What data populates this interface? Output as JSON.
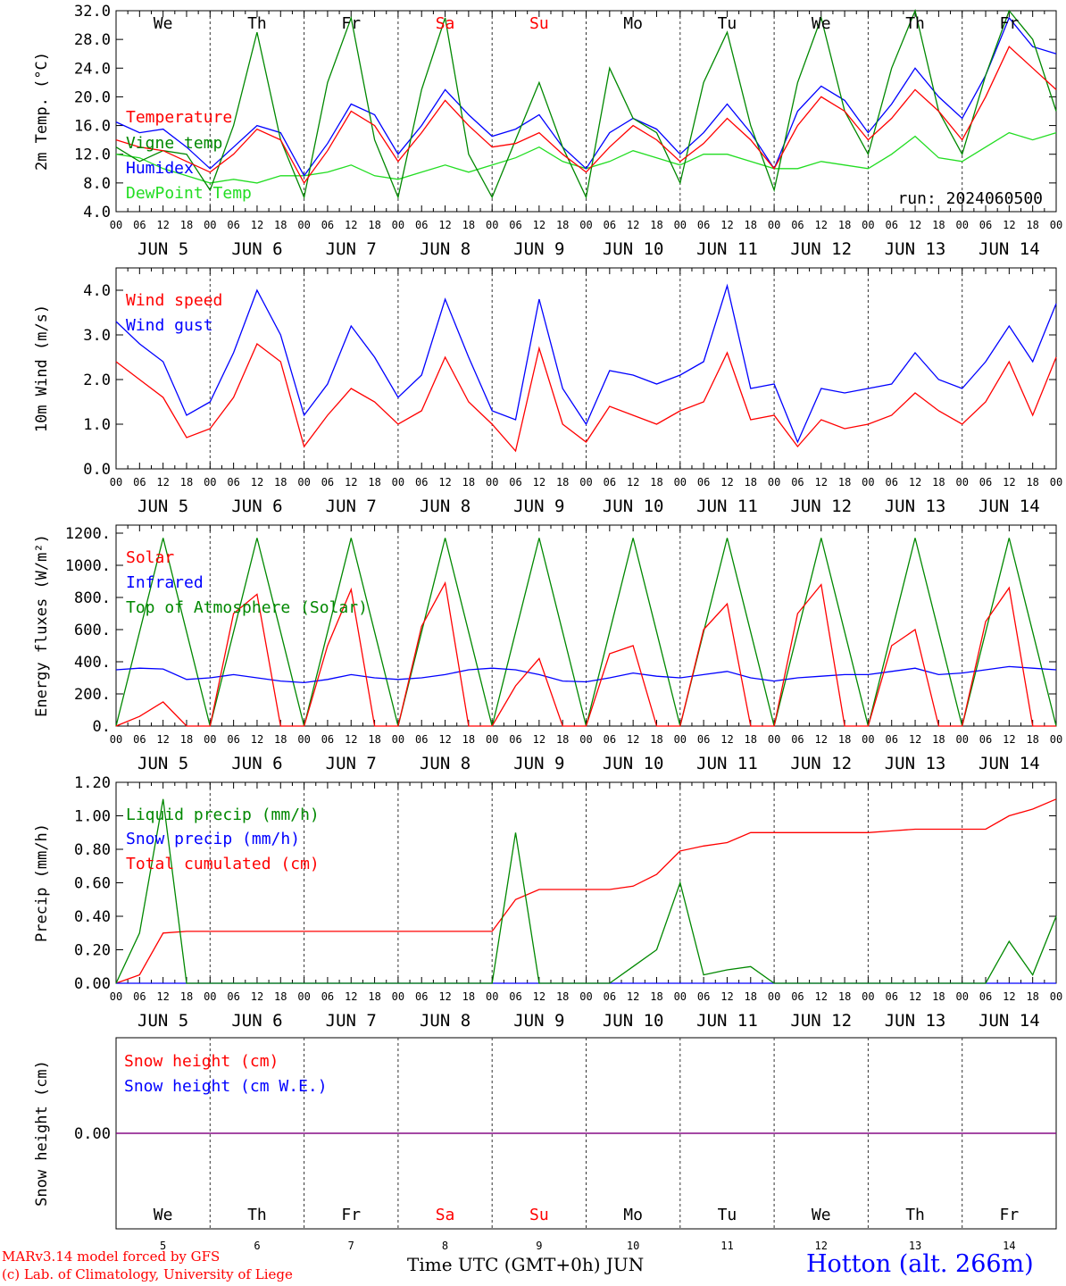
{
  "run_label": "run: 2024060500",
  "days_top": [
    {
      "label": "We",
      "weekend": false
    },
    {
      "label": "Th",
      "weekend": false
    },
    {
      "label": "Fr",
      "weekend": false
    },
    {
      "label": "Sa",
      "weekend": true
    },
    {
      "label": "Su",
      "weekend": true
    },
    {
      "label": "Mo",
      "weekend": false
    },
    {
      "label": "Tu",
      "weekend": false
    },
    {
      "label": "We",
      "weekend": false
    },
    {
      "label": "Th",
      "weekend": false
    },
    {
      "label": "Fr",
      "weekend": false
    }
  ],
  "date_labels": [
    "JUN  5",
    "JUN  6",
    "JUN  7",
    "JUN  8",
    "JUN  9",
    "JUN 10",
    "JUN 11",
    "JUN 12",
    "JUN 13",
    "JUN 14"
  ],
  "hour_ticks": [
    "00",
    "06",
    "12",
    "18"
  ],
  "hour_end": "00",
  "bottom_days": [
    "5",
    "6",
    "7",
    "8",
    "9",
    "10",
    "11",
    "12",
    "13",
    "14"
  ],
  "x_title": "Time UTC (GMT+0h) JUN",
  "footer": {
    "credit_line1": "MARv3.14 model forced by GFS",
    "credit_line2": "(c) Lab. of Climatology, University of Liege",
    "station": "Hotton (alt. 266m)"
  },
  "colors": {
    "red": "#ff0000",
    "blue": "#0000ff",
    "green": "#008800",
    "light_green": "#22dd22",
    "purple": "#800080",
    "weekend": "#ff0000"
  },
  "chart_data": [
    {
      "type": "line",
      "ylabel": "2m Temp. (°C)",
      "ylim": [
        4,
        32
      ],
      "yticks": [
        "4.0",
        "8.0",
        "12.0",
        "16.0",
        "20.0",
        "24.0",
        "28.0",
        "32.0"
      ],
      "x_hours": [
        0,
        6,
        12,
        18,
        24,
        30,
        36,
        42,
        48,
        54,
        60,
        66,
        72,
        78,
        84,
        90,
        96,
        102,
        108,
        114,
        120,
        126,
        132,
        138,
        144,
        150,
        156,
        162,
        168,
        174,
        180,
        186,
        192,
        198,
        204,
        210,
        216,
        222,
        228,
        234,
        240
      ],
      "series": [
        {
          "name": "Temperature",
          "color": "#ff0000",
          "values": [
            14,
            13,
            12.5,
            11,
            9.5,
            12,
            15.5,
            14,
            8,
            12.5,
            18,
            16,
            11,
            15,
            19.5,
            16,
            13,
            13.5,
            15,
            12,
            9.5,
            13,
            16,
            14,
            11,
            13.5,
            17,
            14,
            10,
            16,
            20,
            18,
            14,
            17,
            21,
            18,
            14,
            20,
            27,
            24,
            21
          ]
        },
        {
          "name": "Vigne temp",
          "color": "#008800",
          "values": [
            13,
            11,
            12.5,
            12,
            7,
            16,
            29,
            14,
            6,
            22,
            31,
            14,
            6,
            21,
            31,
            12,
            6,
            14,
            22,
            13,
            6,
            24,
            17,
            15,
            8,
            22,
            29,
            16,
            7,
            22,
            31,
            18,
            12,
            24,
            32,
            18,
            12,
            23,
            33,
            28,
            18
          ]
        },
        {
          "name": "Humidex",
          "color": "#0000ff",
          "values": [
            16.5,
            15,
            15.5,
            13,
            10,
            13,
            16,
            15,
            9,
            13.5,
            19,
            17.5,
            12,
            16,
            21,
            17.5,
            14.5,
            15.5,
            17.5,
            13,
            10,
            15,
            17,
            15.5,
            12,
            15,
            19,
            15,
            10,
            18,
            21.5,
            19.5,
            15,
            19,
            24,
            20,
            17,
            23,
            31,
            27,
            26
          ]
        },
        {
          "name": "DewPoint Temp",
          "color": "#22dd22",
          "values": [
            12,
            11.5,
            10,
            9,
            8,
            8.5,
            8,
            9,
            9,
            9.5,
            10.5,
            9,
            8.5,
            9.5,
            10.5,
            9.5,
            10.5,
            11.5,
            13,
            11,
            10,
            11,
            12.5,
            11.5,
            10.5,
            12,
            12,
            11,
            10,
            10,
            11,
            10.5,
            10,
            12,
            14.5,
            11.5,
            11,
            13,
            15,
            14,
            15
          ]
        }
      ]
    },
    {
      "type": "line",
      "ylabel": "10m Wind (m/s)",
      "ylim": [
        0,
        4.5
      ],
      "yticks": [
        "0.0",
        "1.0",
        "2.0",
        "3.0",
        "4.0"
      ],
      "x_hours": [
        0,
        6,
        12,
        18,
        24,
        30,
        36,
        42,
        48,
        54,
        60,
        66,
        72,
        78,
        84,
        90,
        96,
        102,
        108,
        114,
        120,
        126,
        132,
        138,
        144,
        150,
        156,
        162,
        168,
        174,
        180,
        186,
        192,
        198,
        204,
        210,
        216,
        222,
        228,
        234,
        240
      ],
      "series": [
        {
          "name": "Wind speed",
          "color": "#ff0000",
          "values": [
            2.4,
            2,
            1.6,
            0.7,
            0.9,
            1.6,
            2.8,
            2.4,
            0.5,
            1.2,
            1.8,
            1.5,
            1,
            1.3,
            2.5,
            1.5,
            1,
            0.4,
            2.7,
            1,
            0.6,
            1.4,
            1.2,
            1,
            1.3,
            1.5,
            2.6,
            1.1,
            1.2,
            0.5,
            1.1,
            0.9,
            1,
            1.2,
            1.7,
            1.3,
            1,
            1.5,
            2.4,
            1.2,
            2.5
          ]
        },
        {
          "name": "Wind gust",
          "color": "#0000ff",
          "values": [
            3.3,
            2.8,
            2.4,
            1.2,
            1.5,
            2.6,
            4,
            3,
            1.2,
            1.9,
            3.2,
            2.5,
            1.6,
            2.1,
            3.8,
            2.5,
            1.3,
            1.1,
            3.8,
            1.8,
            1,
            2.2,
            2.1,
            1.9,
            2.1,
            2.4,
            4.1,
            1.8,
            1.9,
            0.6,
            1.8,
            1.7,
            1.8,
            1.9,
            2.6,
            2,
            1.8,
            2.4,
            3.2,
            2.4,
            3.7
          ]
        }
      ]
    },
    {
      "type": "line",
      "ylabel": "Energy fluxes (W/m²)",
      "ylim": [
        0,
        1250
      ],
      "yticks": [
        "0.",
        "200.",
        "400.",
        "600.",
        "800.",
        "1000.",
        "1200."
      ],
      "x_hours": [
        0,
        6,
        12,
        18,
        24,
        30,
        36,
        42,
        48,
        54,
        60,
        66,
        72,
        78,
        84,
        90,
        96,
        102,
        108,
        114,
        120,
        126,
        132,
        138,
        144,
        150,
        156,
        162,
        168,
        174,
        180,
        186,
        192,
        198,
        204,
        210,
        216,
        222,
        228,
        234,
        240
      ],
      "series": [
        {
          "name": "Solar",
          "color": "#ff0000",
          "values": [
            0,
            60,
            150,
            0,
            0,
            700,
            820,
            0,
            0,
            500,
            850,
            0,
            0,
            620,
            890,
            0,
            0,
            250,
            420,
            0,
            0,
            450,
            500,
            0,
            0,
            600,
            760,
            0,
            0,
            700,
            880,
            0,
            0,
            500,
            600,
            0,
            0,
            650,
            860,
            0,
            0
          ]
        },
        {
          "name": "Infrared",
          "color": "#0000ff",
          "values": [
            350,
            360,
            355,
            290,
            300,
            320,
            300,
            280,
            270,
            290,
            320,
            300,
            290,
            300,
            320,
            350,
            360,
            350,
            320,
            280,
            275,
            300,
            330,
            310,
            300,
            320,
            340,
            300,
            280,
            300,
            310,
            320,
            320,
            340,
            360,
            320,
            330,
            350,
            370,
            360,
            350
          ]
        },
        {
          "name": "Top of Atmosphere (Solar)",
          "color": "#008800",
          "values": [
            0,
            585,
            1170,
            585,
            0,
            585,
            1170,
            585,
            0,
            585,
            1170,
            585,
            0,
            585,
            1170,
            585,
            0,
            585,
            1170,
            585,
            0,
            585,
            1170,
            585,
            0,
            585,
            1170,
            585,
            0,
            585,
            1170,
            585,
            0,
            585,
            1170,
            585,
            0,
            585,
            1170,
            585,
            0
          ]
        }
      ]
    },
    {
      "type": "line",
      "ylabel": "Precip (mm/h)",
      "ylim": [
        0,
        1.2
      ],
      "yticks": [
        "0.00",
        "0.20",
        "0.40",
        "0.60",
        "0.80",
        "1.00",
        "1.20"
      ],
      "x_hours": [
        0,
        6,
        12,
        18,
        24,
        30,
        36,
        42,
        48,
        54,
        60,
        66,
        72,
        78,
        84,
        90,
        96,
        102,
        108,
        114,
        120,
        126,
        132,
        138,
        144,
        150,
        156,
        162,
        168,
        174,
        180,
        186,
        192,
        198,
        204,
        210,
        216,
        222,
        228,
        234,
        240
      ],
      "series": [
        {
          "name": "Liquid precip (mm/h)",
          "color": "#008800",
          "values": [
            0,
            0.3,
            1.1,
            0,
            0,
            0,
            0,
            0,
            0,
            0,
            0,
            0,
            0,
            0,
            0,
            0,
            0,
            0.9,
            0,
            0,
            0,
            0,
            0.1,
            0.2,
            0.6,
            0.05,
            0.08,
            0.1,
            0,
            0,
            0,
            0,
            0,
            0,
            0,
            0,
            0,
            0,
            0.25,
            0.05,
            0.4
          ]
        },
        {
          "name": "Snow precip (mm/h)",
          "color": "#0000ff",
          "values": [
            0,
            0,
            0,
            0,
            0,
            0,
            0,
            0,
            0,
            0,
            0,
            0,
            0,
            0,
            0,
            0,
            0,
            0,
            0,
            0,
            0,
            0,
            0,
            0,
            0,
            0,
            0,
            0,
            0,
            0,
            0,
            0,
            0,
            0,
            0,
            0,
            0,
            0,
            0,
            0,
            0
          ]
        },
        {
          "name": "Total cumulated (cm)",
          "color": "#ff0000",
          "values": [
            0,
            0.05,
            0.3,
            0.31,
            0.31,
            0.31,
            0.31,
            0.31,
            0.31,
            0.31,
            0.31,
            0.31,
            0.31,
            0.31,
            0.31,
            0.31,
            0.31,
            0.5,
            0.56,
            0.56,
            0.56,
            0.56,
            0.58,
            0.65,
            0.79,
            0.82,
            0.84,
            0.9,
            0.9,
            0.9,
            0.9,
            0.9,
            0.9,
            0.91,
            0.92,
            0.92,
            0.92,
            0.92,
            1.0,
            1.04,
            1.1
          ]
        }
      ]
    },
    {
      "type": "line",
      "ylabel": "Snow height (cm)",
      "ylim": [
        -1,
        1
      ],
      "yticks": [
        "0.00"
      ],
      "x_hours": [
        0,
        240
      ],
      "series": [
        {
          "name": "Snow height (cm)",
          "color": "#ff0000",
          "values": [
            0,
            0
          ]
        },
        {
          "name": "Snow height (cm W.E.)",
          "color": "#0000ff",
          "values": [
            0,
            0
          ]
        }
      ]
    }
  ]
}
